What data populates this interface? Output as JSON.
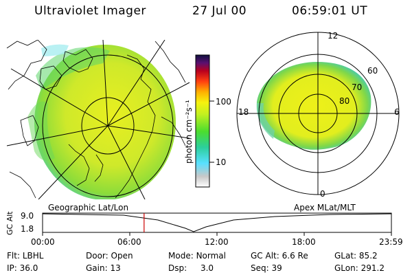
{
  "header": {
    "title": "Ultraviolet Imager",
    "date": "27 Jul 00",
    "time": "06:59:01 UT"
  },
  "geo_panel": {
    "label": "Geographic Lat/Lon"
  },
  "colorbar": {
    "unit_label": "photon cm⁻²s⁻¹",
    "ticks": [
      "100",
      "10"
    ]
  },
  "polar_panel": {
    "label": "Apex MLat/MLT",
    "mlt_labels": [
      "12",
      "18",
      "6",
      "0"
    ],
    "lat_labels": [
      "60",
      "70",
      "80"
    ]
  },
  "alt_plot": {
    "ylabel": "GC Alt",
    "yticks": [
      "9.0",
      "1.8"
    ],
    "xticks": [
      "00:00",
      "06:00",
      "12:00",
      "18:00",
      "23:59"
    ],
    "current_time_fraction": 0.291
  },
  "footer": {
    "row1": [
      {
        "key": "Flt:",
        "val": "LBHL"
      },
      {
        "key": "Door:",
        "val": "Open"
      },
      {
        "key": "Mode:",
        "val": "Normal"
      },
      {
        "key": "GC Alt:",
        "val": "6.6 Re"
      },
      {
        "key": "GLat:",
        "val": "85.2"
      }
    ],
    "row2": [
      {
        "key": "IP:",
        "val": "36.0"
      },
      {
        "key": "Gain:",
        "val": "13"
      },
      {
        "key": "Dsp:",
        "val": "3.0"
      },
      {
        "key": "Seq:",
        "val": "39"
      },
      {
        "key": "GLon:",
        "val": "291.2"
      }
    ]
  },
  "colors": {
    "aurora_fill": "#e6ef1c",
    "aurora_green": "#54d24a",
    "aurora_cyan": "#27c6d2",
    "cursor_red": "#cc0000"
  }
}
